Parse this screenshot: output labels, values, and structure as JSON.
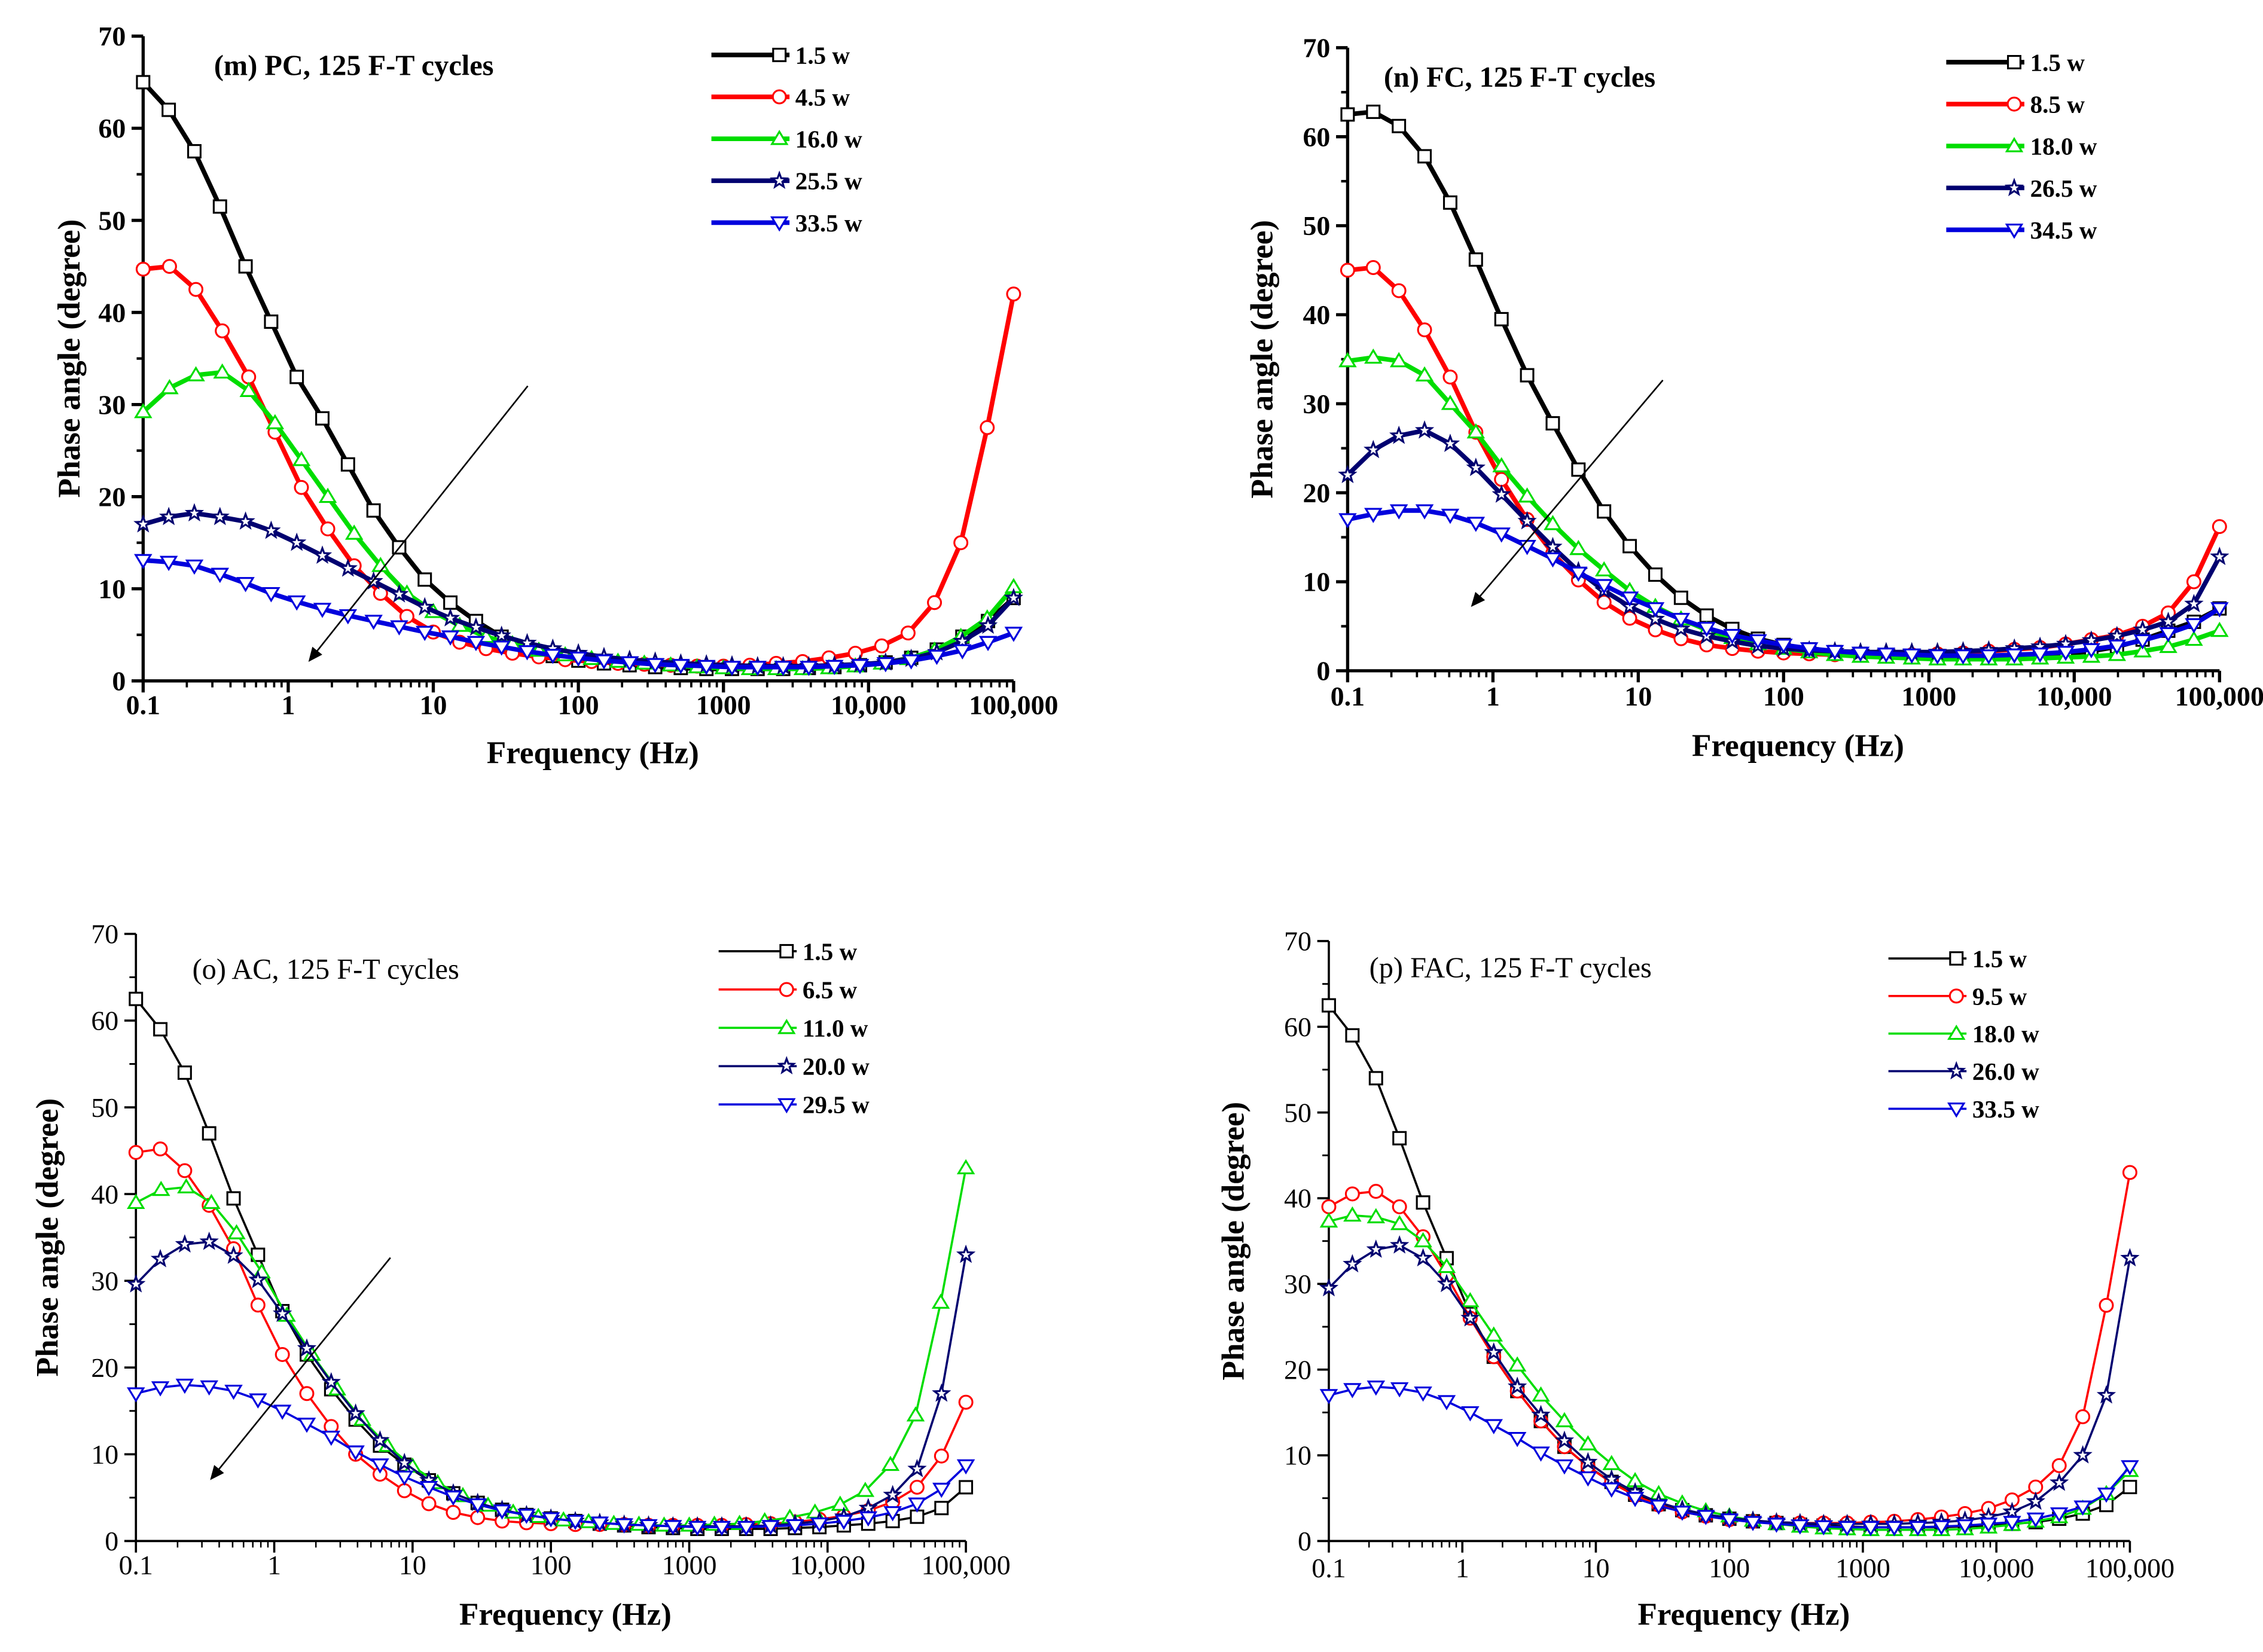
{
  "colors": {
    "black": "#000000",
    "red": "#ff0000",
    "green": "#00dd00",
    "navy": "#000070",
    "blue": "#0000dd"
  },
  "chart_data": [
    {
      "id": "m",
      "type": "line",
      "title": "(m) PC, 125 F-T cycles",
      "xlabel": "Frequency (Hz)",
      "ylabel": "Phase angle (degree)",
      "xscale": "log",
      "xlim": [
        0.1,
        100000
      ],
      "ylim": [
        0,
        70
      ],
      "xticks": [
        "0.1",
        "1",
        "10",
        "100",
        "1000",
        "10,000",
        "100,000"
      ],
      "yticks": [
        "0",
        "10",
        "20",
        "30",
        "40",
        "50",
        "60",
        "70"
      ],
      "legend_position": "top-right",
      "arrow": "trend from upper-right to lower-left",
      "series": [
        {
          "name": "1.5 w",
          "marker": "square",
          "color": "black",
          "values": [
            65,
            62,
            57.5,
            51.5,
            45,
            39,
            33,
            28.5,
            23.5,
            18.5,
            14.5,
            11,
            8.5,
            6.5,
            4.8,
            3.6,
            2.7,
            2.2,
            1.9,
            1.7,
            1.5,
            1.4,
            1.3,
            1.3,
            1.3,
            1.3,
            1.4,
            1.5,
            1.7,
            2.0,
            2.5,
            3.4,
            4.8,
            6.5,
            9
          ]
        },
        {
          "name": "4.5 w",
          "marker": "circle",
          "color": "red",
          "values": [
            44.7,
            45,
            42.5,
            38,
            33,
            27,
            21,
            16.5,
            12.5,
            9.5,
            7,
            5.3,
            4.2,
            3.5,
            3,
            2.6,
            2.3,
            2.1,
            1.9,
            1.8,
            1.7,
            1.6,
            1.6,
            1.7,
            1.9,
            2.1,
            2.5,
            3,
            3.8,
            5.2,
            8.5,
            15,
            27.5,
            42
          ]
        },
        {
          "name": "16.0 w",
          "marker": "triangle-up",
          "color": "green",
          "values": [
            29.2,
            31.8,
            33.2,
            33.5,
            31.5,
            28,
            24,
            20,
            16,
            12.5,
            9.5,
            7.5,
            6,
            4.8,
            4,
            3.3,
            2.8,
            2.4,
            2.1,
            1.9,
            1.7,
            1.5,
            1.4,
            1.3,
            1.3,
            1.3,
            1.4,
            1.6,
            1.9,
            2.4,
            3.3,
            4.8,
            6.8,
            10.2
          ]
        },
        {
          "name": "25.5 w",
          "marker": "star",
          "color": "navy",
          "values": [
            17,
            17.8,
            18.2,
            17.8,
            17.3,
            16.3,
            15,
            13.6,
            12.2,
            10.8,
            9.4,
            8,
            6.8,
            5.8,
            4.9,
            4.1,
            3.5,
            3,
            2.6,
            2.3,
            2.1,
            1.9,
            1.8,
            1.7,
            1.6,
            1.6,
            1.6,
            1.7,
            1.8,
            2,
            2.4,
            3.1,
            4.3,
            6,
            9
          ]
        },
        {
          "name": "33.5 w",
          "marker": "triangle-down",
          "color": "blue",
          "values": [
            13.1,
            12.9,
            12.5,
            11.6,
            10.6,
            9.5,
            8.6,
            7.8,
            7.1,
            6.5,
            5.9,
            5.3,
            4.8,
            4.2,
            3.7,
            3.2,
            2.8,
            2.5,
            2.2,
            2,
            1.8,
            1.7,
            1.6,
            1.5,
            1.5,
            1.5,
            1.5,
            1.6,
            1.7,
            1.9,
            2.2,
            2.7,
            3.3,
            4.2,
            5.2
          ]
        }
      ]
    },
    {
      "id": "n",
      "type": "line",
      "title": "(n) FC, 125 F-T cycles",
      "xlabel": "Frequency (Hz)",
      "ylabel": "Phase angle (degree)",
      "xscale": "log",
      "xlim": [
        0.1,
        100000
      ],
      "ylim": [
        0,
        70
      ],
      "xticks": [
        "0.1",
        "1",
        "10",
        "100",
        "1000",
        "10,000",
        "100,000"
      ],
      "yticks": [
        "0",
        "10",
        "20",
        "30",
        "40",
        "50",
        "60",
        "70"
      ],
      "legend_position": "top-right",
      "arrow": "trend from upper-right to lower-left",
      "series": [
        {
          "name": "1.5 w",
          "marker": "square",
          "color": "black",
          "values": [
            62.5,
            62.8,
            61.2,
            57.8,
            52.6,
            46.2,
            39.5,
            33.2,
            27.8,
            22.6,
            17.9,
            14,
            10.8,
            8.2,
            6.2,
            4.7,
            3.6,
            2.9,
            2.4,
            2.1,
            1.9,
            1.7,
            1.6,
            1.5,
            1.5,
            1.5,
            1.6,
            1.7,
            1.9,
            2.2,
            2.7,
            3.5,
            4.5,
            5.5,
            7
          ]
        },
        {
          "name": "8.5 w",
          "marker": "circle",
          "color": "red",
          "values": [
            45,
            45.3,
            42.7,
            38.3,
            33,
            26.8,
            21.5,
            17,
            13.2,
            10.2,
            7.7,
            5.9,
            4.6,
            3.6,
            2.9,
            2.5,
            2.2,
            2,
            1.9,
            1.8,
            1.8,
            1.8,
            1.8,
            1.9,
            2,
            2.2,
            2.4,
            2.6,
            3,
            3.5,
            4,
            5,
            6.5,
            10,
            16.2
          ]
        },
        {
          "name": "18.0 w",
          "marker": "triangle-up",
          "color": "green",
          "values": [
            34.8,
            35.2,
            34.8,
            33.2,
            30,
            26.8,
            23,
            19.6,
            16.5,
            13.7,
            11.3,
            9,
            7.2,
            5.8,
            4.6,
            3.7,
            3,
            2.5,
            2.1,
            1.8,
            1.6,
            1.5,
            1.4,
            1.3,
            1.3,
            1.3,
            1.3,
            1.4,
            1.5,
            1.6,
            1.8,
            2.2,
            2.7,
            3.5,
            4.5
          ]
        },
        {
          "name": "26.5 w",
          "marker": "star",
          "color": "navy",
          "values": [
            22,
            24.8,
            26.4,
            27,
            25.5,
            22.8,
            19.8,
            16.8,
            13.9,
            11.2,
            9,
            7.2,
            5.8,
            4.7,
            3.9,
            3.3,
            2.8,
            2.5,
            2.3,
            2.2,
            2.1,
            2.1,
            2.1,
            2.1,
            2.2,
            2.3,
            2.5,
            2.7,
            3,
            3.4,
            3.9,
            4.6,
            5.5,
            7.5,
            12.8
          ]
        },
        {
          "name": "34.5 w",
          "marker": "triangle-down",
          "color": "blue",
          "values": [
            17,
            17.6,
            18,
            18,
            17.5,
            16.6,
            15.4,
            14,
            12.6,
            11,
            9.6,
            8.2,
            7,
            5.8,
            4.8,
            4,
            3.4,
            2.9,
            2.5,
            2.2,
            2,
            1.9,
            1.8,
            1.7,
            1.7,
            1.7,
            1.8,
            1.9,
            2.1,
            2.4,
            2.8,
            3.4,
            4.2,
            5.2,
            7
          ]
        }
      ]
    },
    {
      "id": "o",
      "type": "line",
      "title": "(o) AC, 125 F-T cycles",
      "xlabel": "Frequency (Hz)",
      "ylabel": "Phase angle (degree)",
      "xscale": "log",
      "xlim": [
        0.1,
        100000
      ],
      "ylim": [
        0,
        70
      ],
      "xticks": [
        "0.1",
        "1",
        "10",
        "100",
        "1000",
        "10,000",
        "100,000"
      ],
      "yticks": [
        "0",
        "10",
        "20",
        "30",
        "40",
        "50",
        "60",
        "70"
      ],
      "legend_position": "top-right",
      "arrow": "trend from upper-right to lower-left",
      "series": [
        {
          "name": "1.5 w",
          "marker": "square",
          "color": "black",
          "values": [
            62.5,
            59,
            54,
            47,
            39.5,
            33,
            26.5,
            21.5,
            17.5,
            14,
            11,
            8.8,
            7,
            5.5,
            4.4,
            3.6,
            3,
            2.6,
            2.3,
            2,
            1.8,
            1.6,
            1.5,
            1.4,
            1.4,
            1.4,
            1.4,
            1.5,
            1.6,
            1.8,
            2,
            2.3,
            2.8,
            3.8,
            6.2
          ]
        },
        {
          "name": "6.5 w",
          "marker": "circle",
          "color": "red",
          "values": [
            44.8,
            45.2,
            42.7,
            38.7,
            33.7,
            27.2,
            21.5,
            17,
            13.2,
            10,
            7.7,
            5.8,
            4.3,
            3.3,
            2.7,
            2.3,
            2.1,
            2,
            1.9,
            1.9,
            1.9,
            1.8,
            1.8,
            1.8,
            1.8,
            1.9,
            2,
            2.2,
            2.5,
            2.9,
            3.5,
            4.5,
            6.2,
            9.8,
            16
          ]
        },
        {
          "name": "11.0 w",
          "marker": "triangle-up",
          "color": "green",
          "values": [
            39,
            40.5,
            40.8,
            39,
            35.5,
            31,
            26,
            21.5,
            17.5,
            14,
            11,
            8.6,
            6.7,
            5.2,
            4.1,
            3.3,
            2.8,
            2.4,
            2.2,
            2,
            1.9,
            1.8,
            1.8,
            1.9,
            2,
            2.3,
            2.7,
            3.3,
            4.2,
            5.8,
            8.8,
            14.5,
            27.5,
            43
          ]
        },
        {
          "name": "20.0 w",
          "marker": "star",
          "color": "navy",
          "values": [
            29.6,
            32.5,
            34.2,
            34.5,
            32.9,
            30.1,
            26.2,
            22.2,
            18.3,
            14.7,
            11.6,
            9,
            7,
            5.5,
            4.4,
            3.6,
            3,
            2.6,
            2.3,
            2.1,
            1.9,
            1.8,
            1.7,
            1.7,
            1.7,
            1.7,
            1.8,
            2,
            2.3,
            2.8,
            3.8,
            5.3,
            8.3,
            17,
            33
          ]
        },
        {
          "name": "29.5 w",
          "marker": "triangle-down",
          "color": "blue",
          "values": [
            17,
            17.7,
            18,
            17.8,
            17.3,
            16.3,
            15,
            13.5,
            12,
            10.3,
            8.8,
            7.4,
            6.2,
            5.1,
            4.2,
            3.5,
            3,
            2.6,
            2.3,
            2.1,
            1.9,
            1.8,
            1.7,
            1.6,
            1.6,
            1.6,
            1.7,
            1.8,
            2,
            2.3,
            2.7,
            3.3,
            4.3,
            6,
            8.7
          ]
        }
      ]
    },
    {
      "id": "p",
      "type": "line",
      "title": "(p) FAC, 125 F-T cycles",
      "xlabel": "Frequency (Hz)",
      "ylabel": "Phase angle (degree)",
      "xscale": "log",
      "xlim": [
        0.1,
        100000
      ],
      "ylim": [
        0,
        70
      ],
      "xticks": [
        "0.1",
        "1",
        "10",
        "100",
        "1000",
        "10,000",
        "100,000"
      ],
      "yticks": [
        "0",
        "10",
        "20",
        "30",
        "40",
        "50",
        "60",
        "70"
      ],
      "legend_position": "top-right",
      "series": [
        {
          "name": "1.5 w",
          "marker": "square",
          "color": "black",
          "values": [
            62.5,
            59,
            54,
            47,
            39.5,
            33,
            26.5,
            21.5,
            17.5,
            14,
            11,
            8.7,
            6.9,
            5.4,
            4.3,
            3.6,
            3,
            2.6,
            2.3,
            2.1,
            1.9,
            1.8,
            1.7,
            1.6,
            1.6,
            1.6,
            1.6,
            1.7,
            1.8,
            2,
            2.2,
            2.6,
            3.2,
            4.2,
            6.3
          ]
        },
        {
          "name": "9.5 w",
          "marker": "circle",
          "color": "red",
          "values": [
            39,
            40.5,
            40.8,
            39,
            35.5,
            31,
            26,
            21.5,
            17.5,
            14,
            11,
            8.7,
            6.8,
            5.3,
            4.2,
            3.4,
            2.9,
            2.5,
            2.3,
            2.2,
            2.1,
            2.1,
            2.1,
            2.2,
            2.3,
            2.5,
            2.8,
            3.2,
            3.8,
            4.8,
            6.3,
            8.8,
            14.5,
            27.5,
            43
          ]
        },
        {
          "name": "18.0 w",
          "marker": "triangle-up",
          "color": "green",
          "values": [
            37.3,
            38,
            37.8,
            37,
            35,
            32,
            28,
            24,
            20.5,
            17,
            14,
            11.3,
            9,
            7,
            5.5,
            4.4,
            3.5,
            2.9,
            2.4,
            2,
            1.7,
            1.5,
            1.4,
            1.3,
            1.3,
            1.3,
            1.3,
            1.4,
            1.6,
            1.9,
            2.3,
            2.8,
            3.8,
            5.5,
            8.2
          ]
        },
        {
          "name": "26.0 w",
          "marker": "star",
          "color": "navy",
          "values": [
            29.5,
            32.3,
            34,
            34.5,
            33,
            30,
            26,
            22,
            18,
            14.7,
            11.7,
            9.2,
            7.2,
            5.7,
            4.5,
            3.7,
            3.1,
            2.7,
            2.4,
            2.2,
            2.1,
            2,
            2,
            2,
            2,
            2.1,
            2.2,
            2.4,
            2.8,
            3.4,
            4.6,
            6.8,
            10,
            17,
            33
          ]
        },
        {
          "name": "33.5 w",
          "marker": "triangle-down",
          "color": "blue",
          "values": [
            17,
            17.7,
            18,
            17.8,
            17.3,
            16.3,
            15,
            13.5,
            12,
            10.3,
            8.8,
            7.4,
            6.1,
            5,
            4.1,
            3.4,
            2.9,
            2.5,
            2.2,
            2,
            1.8,
            1.7,
            1.6,
            1.6,
            1.6,
            1.6,
            1.7,
            1.8,
            2,
            2.2,
            2.6,
            3.2,
            4,
            5.5,
            8.7
          ]
        }
      ]
    }
  ]
}
